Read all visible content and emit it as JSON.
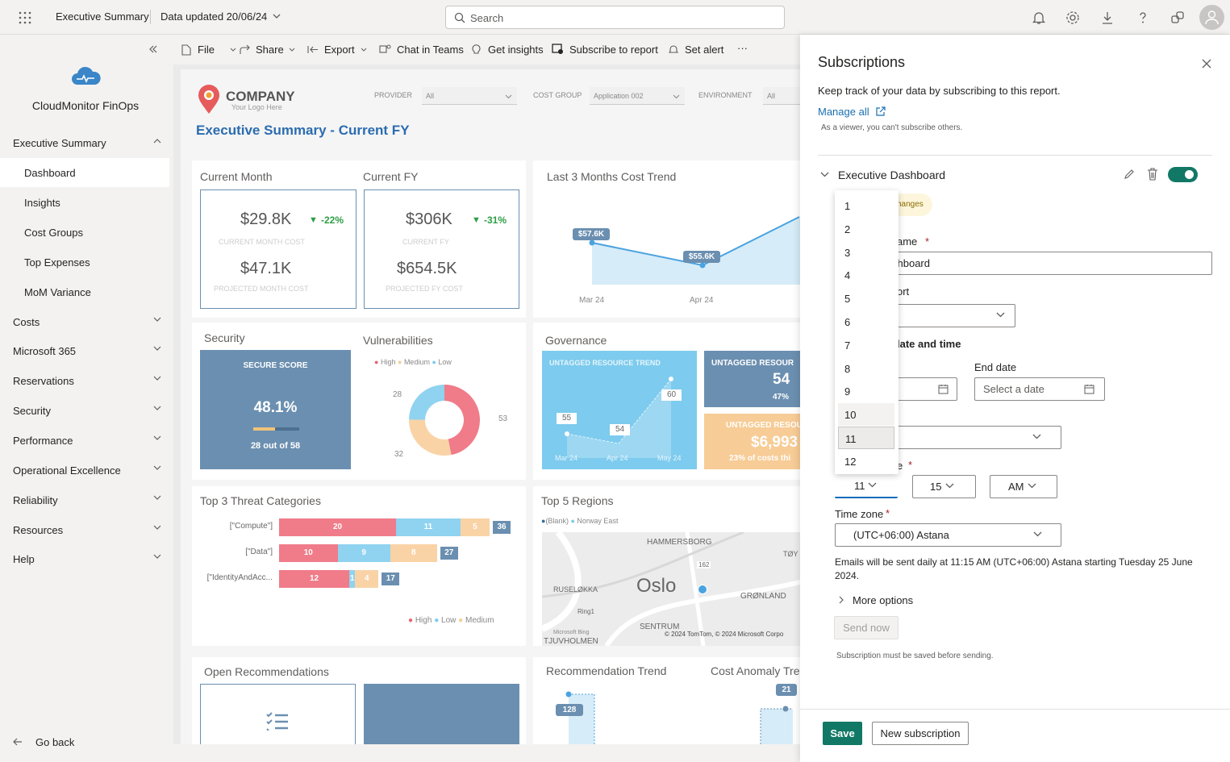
{
  "topbar": {
    "app_title": "Executive Summary",
    "data_updated": "Data updated 20/06/24",
    "search_placeholder": "Search"
  },
  "sidebar": {
    "app_name": "CloudMonitor FinOps",
    "section": "Executive Summary",
    "items": [
      {
        "label": "Dashboard"
      },
      {
        "label": "Insights"
      },
      {
        "label": "Cost Groups"
      },
      {
        "label": "Top Expenses"
      },
      {
        "label": "MoM Variance"
      }
    ],
    "groups": [
      {
        "label": "Costs"
      },
      {
        "label": "Microsoft 365"
      },
      {
        "label": "Reservations"
      },
      {
        "label": "Security"
      },
      {
        "label": "Performance"
      },
      {
        "label": "Operational Excellence"
      },
      {
        "label": "Reliability"
      },
      {
        "label": "Resources"
      },
      {
        "label": "Help"
      }
    ],
    "go_back": "Go back"
  },
  "toolbar": {
    "file": "File",
    "share": "Share",
    "export": "Export",
    "chat": "Chat in Teams",
    "insights": "Get insights",
    "subscribe": "Subscribe to report",
    "alert": "Set alert",
    "more": "···"
  },
  "report": {
    "company": "COMPANY",
    "company_tag": "Your Logo Here",
    "title": "Executive Summary - Current FY",
    "filters": {
      "provider_label": "PROVIDER",
      "provider_value": "All",
      "costgroup_label": "COST GROUP",
      "costgroup_value": "Application 002",
      "environment_label": "ENVIRONMENT",
      "environment_value": "All"
    },
    "current_month": {
      "title": "Current Month",
      "value": "$29.8K",
      "delta": "-22%",
      "label": "CURRENT MONTH COST",
      "projected": "$47.1K",
      "projected_label": "PROJECTED MONTH COST"
    },
    "current_fy": {
      "title": "Current FY",
      "value": "$306K",
      "delta": "-31%",
      "label": "CURRENT FY",
      "projected": "$654.5K",
      "projected_label": "PROJECTED FY COST"
    },
    "trend": {
      "title": "Last 3 Months Cost Trend",
      "labels": [
        "$57.6K",
        "$55.6K"
      ],
      "x": [
        "Mar 24",
        "Apr 24"
      ]
    },
    "security": {
      "title": "Security",
      "score_label": "SECURE SCORE",
      "score": "48.1%",
      "score_fraction": 0.481,
      "detail": "28 out of 58"
    },
    "vulnerabilities": {
      "title": "Vulnerabilities",
      "legend": [
        "High",
        "Medium",
        "Low"
      ],
      "values": {
        "high": 53,
        "medium": 32,
        "low": 28
      },
      "label_28": "28",
      "label_32": "32",
      "label_53": "53"
    },
    "governance": {
      "title": "Governance",
      "trend_label": "UNTAGGED RESOURCE TREND",
      "trend_values": [
        "55",
        "54",
        "60"
      ],
      "trend_x": [
        "Mar 24",
        "Apr 24",
        "May 24"
      ],
      "untagged_label": "UNTAGGED RESOUR",
      "untagged_count": "54",
      "untagged_pct": "47%",
      "cost_label": "UNTAGGED RESOU",
      "cost_value": "$6,993",
      "cost_note": "23% of costs thi"
    },
    "threats": {
      "title": "Top 3 Threat Categories",
      "rows": [
        {
          "name": "[\"Compute\"]",
          "high": "20",
          "low": "11",
          "medium": "5",
          "total": "36"
        },
        {
          "name": "[\"Data\"]",
          "high": "10",
          "low": "9",
          "medium": "8",
          "total": "27"
        },
        {
          "name": "[\"IdentityAndAcc...",
          "high": "12",
          "low": "1",
          "medium": "4",
          "total": "17"
        }
      ],
      "legend": [
        "High",
        "Low",
        "Medium"
      ]
    },
    "regions": {
      "title": "Top 5 Regions",
      "legend": [
        "(Blank)",
        "Norway East"
      ],
      "map_city": "Oslo",
      "map_labels": [
        "HAMMERSBORG",
        "RUSELØKKA",
        "GRØNLAND",
        "SENTRUM",
        "TJUVHOLMEN",
        "TØY",
        "Ring1",
        "162"
      ],
      "copyright": "© 2024 TomTom, © 2024 Microsoft Corpo",
      "bing": "Microsoft Bing"
    },
    "open_recs": {
      "title": "Open Recommendations"
    },
    "rec_trend": {
      "title": "Recommendation Trend",
      "value": "128"
    },
    "anomaly": {
      "title": "Cost Anomaly Tre",
      "value": "21"
    }
  },
  "panel": {
    "title": "Subscriptions",
    "desc": "Keep track of your data by subscribing to this report.",
    "manage_all": "Manage all",
    "viewer_note": "As a viewer, you can't subscribe others.",
    "sub_name": "Executive Dashboard",
    "changes_chip": "hanges",
    "name_label": "ame",
    "name_value": "shboard",
    "report_label": "ort",
    "datetime_label": "late and time",
    "end_date_label": "End date",
    "end_date_placeholder": "Select a date",
    "time_label": "e",
    "hour": "11",
    "minute": "15",
    "ampm": "AM",
    "timezone_label": "Time zone",
    "timezone_value": "(UTC+06:00) Astana",
    "email_note": "Emails will be sent daily at 11:15 AM (UTC+06:00) Astana starting Tuesday 25 June 2024.",
    "more_options": "More options",
    "send_now": "Send now",
    "save_note": "Subscription must be saved before sending.",
    "save": "Save",
    "new_subscription": "New subscription",
    "hour_options": [
      "1",
      "2",
      "3",
      "4",
      "5",
      "6",
      "7",
      "8",
      "9",
      "10",
      "11",
      "12"
    ],
    "selected_hour": "11"
  }
}
